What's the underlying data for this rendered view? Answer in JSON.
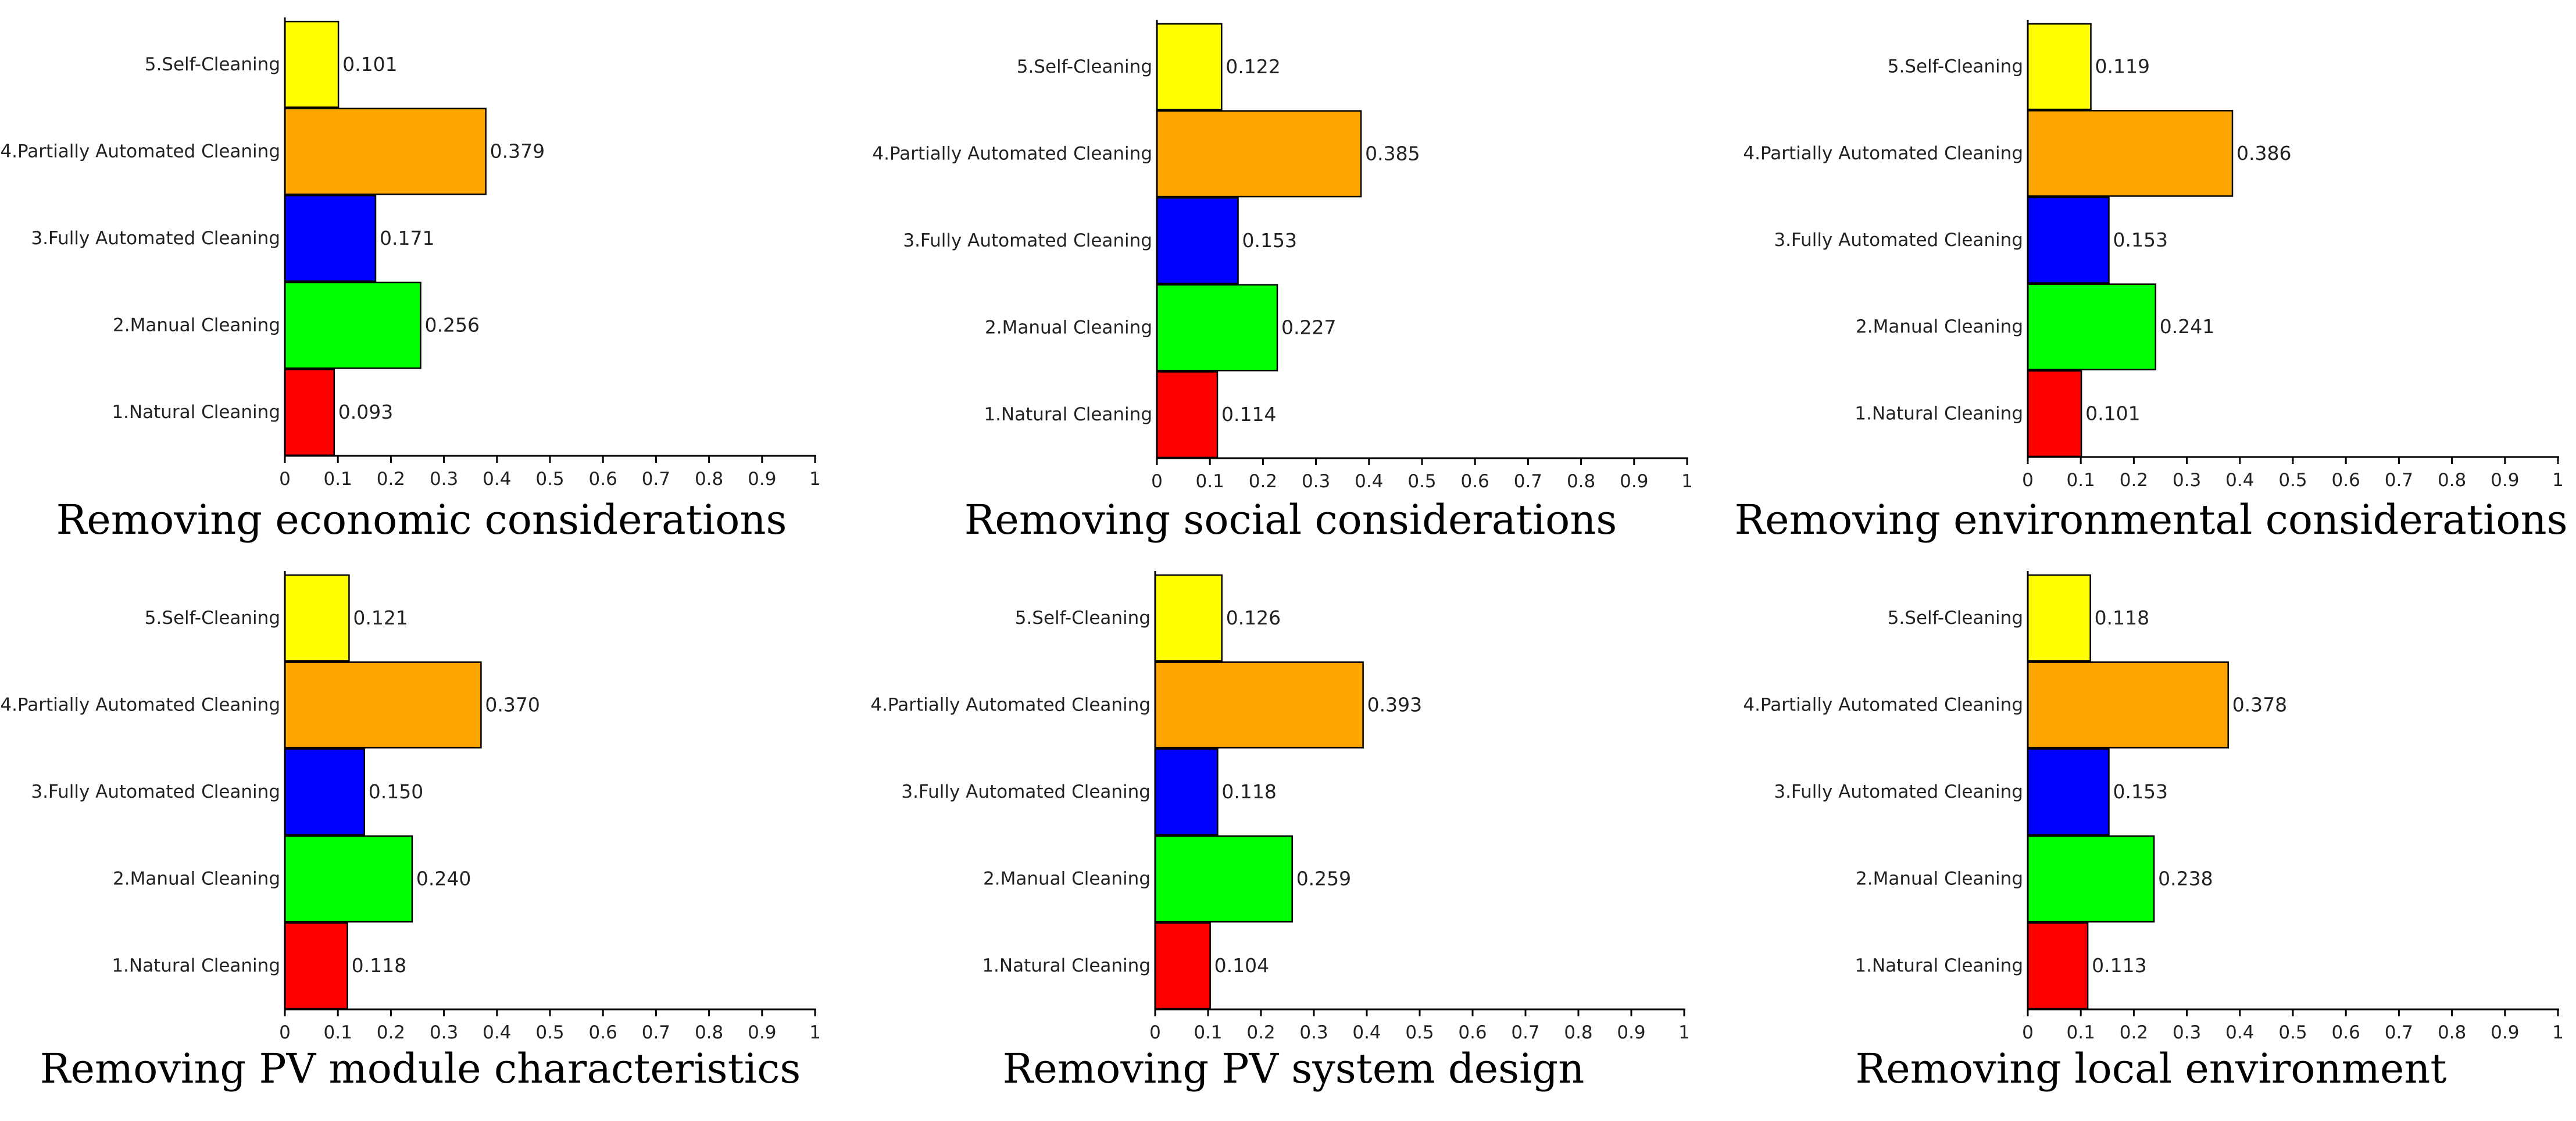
{
  "colors": {
    "natural": "#ff0000",
    "manual": "#00ff00",
    "fully": "#0000ff",
    "partially": "#ffa500",
    "self": "#ffff00"
  },
  "chart_data": [
    {
      "type": "bar",
      "orientation": "horizontal",
      "title": "Removing economic considerations",
      "categories": [
        "5.Self-Cleaning",
        "4.Partially Automated Cleaning",
        "3.Fully Automated Cleaning",
        "2.Manual Cleaning",
        "1.Natural Cleaning"
      ],
      "values": [
        0.101,
        0.379,
        0.171,
        0.256,
        0.093
      ],
      "value_labels": [
        "0.101",
        "0.379",
        "0.171",
        "0.256",
        "0.093"
      ],
      "bar_colors": [
        "#ffff00",
        "#ffa500",
        "#0000ff",
        "#00ff00",
        "#ff0000"
      ],
      "xlim": [
        0,
        1
      ],
      "xticks": [
        "0",
        "0.1",
        "0.2",
        "0.3",
        "0.4",
        "0.5",
        "0.6",
        "0.7",
        "0.8",
        "0.9",
        "1"
      ]
    },
    {
      "type": "bar",
      "orientation": "horizontal",
      "title": "Removing social considerations",
      "categories": [
        "5.Self-Cleaning",
        "4.Partially Automated Cleaning",
        "3.Fully Automated Cleaning",
        "2.Manual Cleaning",
        "1.Natural Cleaning"
      ],
      "values": [
        0.122,
        0.385,
        0.153,
        0.227,
        0.114
      ],
      "value_labels": [
        "0.122",
        "0.385",
        "0.153",
        "0.227",
        "0.114"
      ],
      "bar_colors": [
        "#ffff00",
        "#ffa500",
        "#0000ff",
        "#00ff00",
        "#ff0000"
      ],
      "xlim": [
        0,
        1
      ],
      "xticks": [
        "0",
        "0.1",
        "0.2",
        "0.3",
        "0.4",
        "0.5",
        "0.6",
        "0.7",
        "0.8",
        "0.9",
        "1"
      ]
    },
    {
      "type": "bar",
      "orientation": "horizontal",
      "title": "Removing environmental considerations",
      "categories": [
        "5.Self-Cleaning",
        "4.Partially Automated Cleaning",
        "3.Fully Automated Cleaning",
        "2.Manual Cleaning",
        "1.Natural Cleaning"
      ],
      "values": [
        0.119,
        0.386,
        0.153,
        0.241,
        0.101
      ],
      "value_labels": [
        "0.119",
        "0.386",
        "0.153",
        "0.241",
        "0.101"
      ],
      "bar_colors": [
        "#ffff00",
        "#ffa500",
        "#0000ff",
        "#00ff00",
        "#ff0000"
      ],
      "xlim": [
        0,
        1
      ],
      "xticks": [
        "0",
        "0.1",
        "0.2",
        "0.3",
        "0.4",
        "0.5",
        "0.6",
        "0.7",
        "0.8",
        "0.9",
        "1"
      ]
    },
    {
      "type": "bar",
      "orientation": "horizontal",
      "title": "Removing PV module characteristics",
      "categories": [
        "5.Self-Cleaning",
        "4.Partially Automated Cleaning",
        "3.Fully Automated Cleaning",
        "2.Manual Cleaning",
        "1.Natural Cleaning"
      ],
      "values": [
        0.121,
        0.37,
        0.15,
        0.24,
        0.118
      ],
      "value_labels": [
        "0.121",
        "0.370",
        "0.150",
        "0.240",
        "0.118"
      ],
      "bar_colors": [
        "#ffff00",
        "#ffa500",
        "#0000ff",
        "#00ff00",
        "#ff0000"
      ],
      "xlim": [
        0,
        1
      ],
      "xticks": [
        "0",
        "0.1",
        "0.2",
        "0.3",
        "0.4",
        "0.5",
        "0.6",
        "0.7",
        "0.8",
        "0.9",
        "1"
      ]
    },
    {
      "type": "bar",
      "orientation": "horizontal",
      "title": "Removing PV system design",
      "categories": [
        "5.Self-Cleaning",
        "4.Partially Automated Cleaning",
        "3.Fully Automated Cleaning",
        "2.Manual Cleaning",
        "1.Natural Cleaning"
      ],
      "values": [
        0.126,
        0.393,
        0.118,
        0.259,
        0.104
      ],
      "value_labels": [
        "0.126",
        "0.393",
        "0.118",
        "0.259",
        "0.104"
      ],
      "bar_colors": [
        "#ffff00",
        "#ffa500",
        "#0000ff",
        "#00ff00",
        "#ff0000"
      ],
      "xlim": [
        0,
        1
      ],
      "xticks": [
        "0",
        "0.1",
        "0.2",
        "0.3",
        "0.4",
        "0.5",
        "0.6",
        "0.7",
        "0.8",
        "0.9",
        "1"
      ]
    },
    {
      "type": "bar",
      "orientation": "horizontal",
      "title": "Removing local environment",
      "categories": [
        "5.Self-Cleaning",
        "4.Partially Automated Cleaning",
        "3.Fully Automated Cleaning",
        "2.Manual Cleaning",
        "1.Natural Cleaning"
      ],
      "values": [
        0.118,
        0.378,
        0.153,
        0.238,
        0.113
      ],
      "value_labels": [
        "0.118",
        "0.378",
        "0.153",
        "0.238",
        "0.113"
      ],
      "bar_colors": [
        "#ffff00",
        "#ffa500",
        "#0000ff",
        "#00ff00",
        "#ff0000"
      ],
      "xlim": [
        0,
        1
      ],
      "xticks": [
        "0",
        "0.1",
        "0.2",
        "0.3",
        "0.4",
        "0.5",
        "0.6",
        "0.7",
        "0.8",
        "0.9",
        "1"
      ]
    }
  ]
}
